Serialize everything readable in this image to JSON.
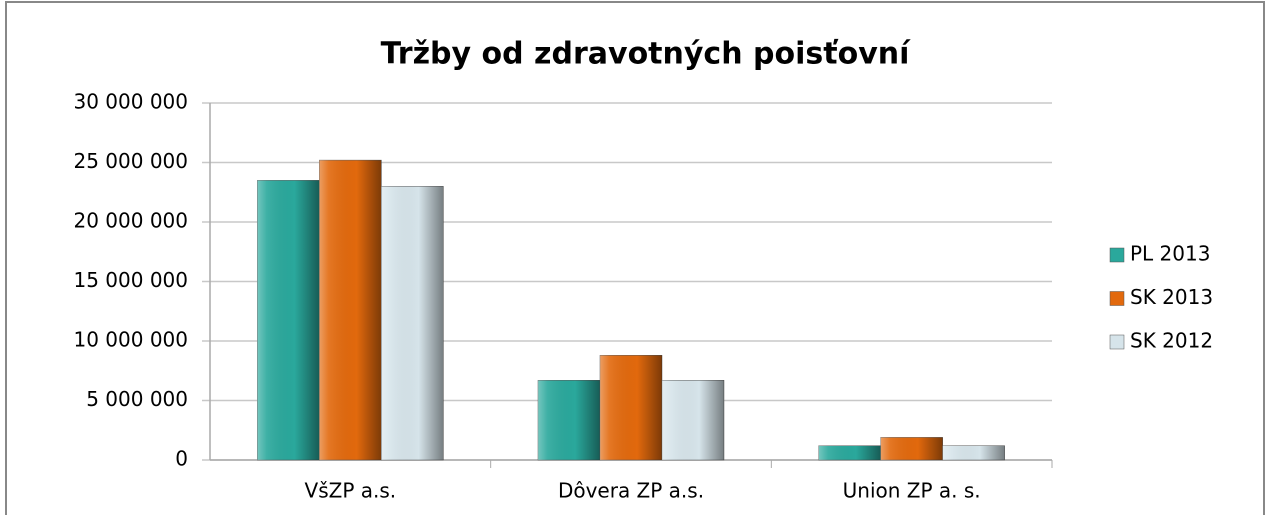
{
  "chart_data": {
    "type": "bar",
    "title": "Tržby od zdravotných poisťovní",
    "categories": [
      "VšZP a.s.",
      "Dôvera ZP a.s.",
      "Union ZP a. s."
    ],
    "series": [
      {
        "name": "PL 2013",
        "color": "#2aa89c",
        "values": [
          23500000,
          6700000,
          1200000
        ]
      },
      {
        "name": "SK 2013",
        "color": "#e2690d",
        "values": [
          25200000,
          8800000,
          1900000
        ]
      },
      {
        "name": "SK 2012",
        "color": "#d6e4ea",
        "values": [
          23000000,
          6700000,
          1200000
        ]
      }
    ],
    "ylim": [
      0,
      30000000
    ],
    "yticks": [
      0,
      {
        "value": 5000000,
        "label": "5 000 000"
      },
      {
        "value": 10000000,
        "label": "10 000 000"
      },
      {
        "value": 15000000,
        "label": "15 000 000"
      },
      {
        "value": 20000000,
        "label": "20 000 000"
      },
      {
        "value": 25000000,
        "label": "25 000 000"
      },
      {
        "value": 30000000,
        "label": "30 000 000"
      }
    ],
    "grid": true,
    "legend": "right"
  }
}
